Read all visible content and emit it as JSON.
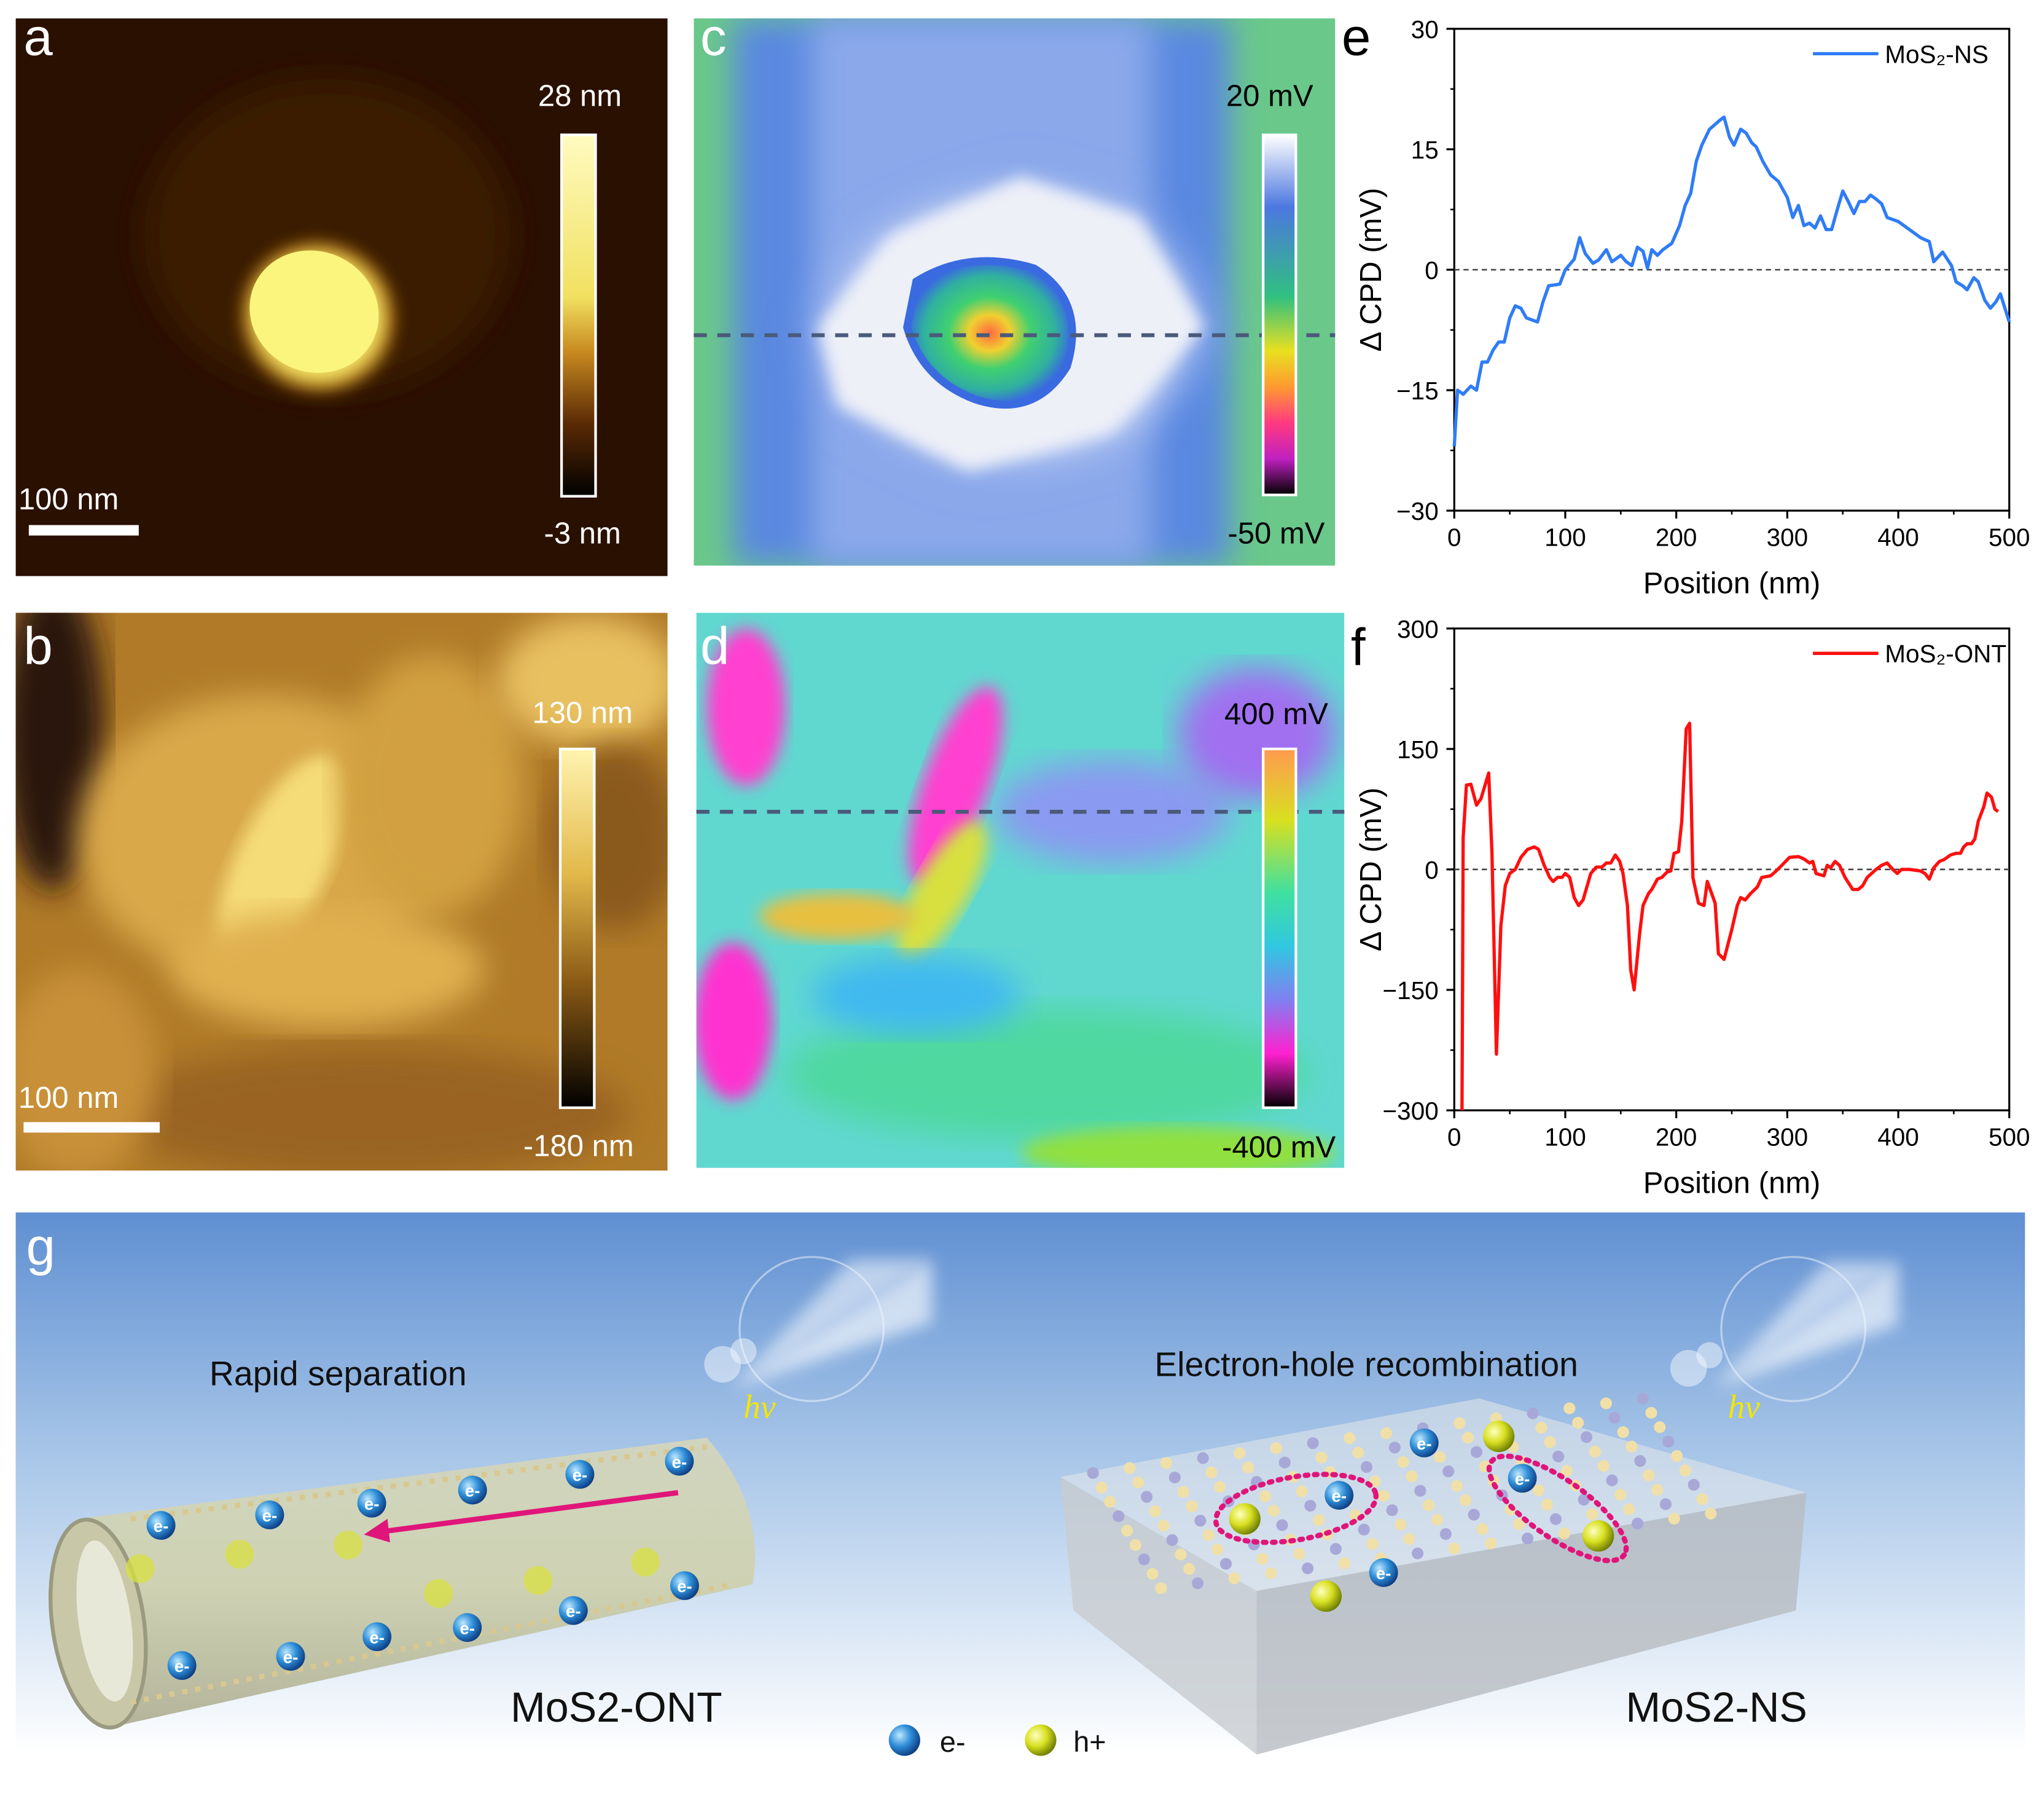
{
  "panels": {
    "a": {
      "letter": "a",
      "scale_bar": "100 nm",
      "cbar_max": "28 nm",
      "cbar_min": "-3 nm"
    },
    "b": {
      "letter": "b",
      "scale_bar": "100 nm",
      "cbar_max": "130 nm",
      "cbar_min": "-180 nm"
    },
    "c": {
      "letter": "c",
      "cbar_max": "20 mV",
      "cbar_min": "-50 mV"
    },
    "d": {
      "letter": "d",
      "cbar_max": "400 mV",
      "cbar_min": "-400 mV"
    },
    "e": {
      "letter": "e"
    },
    "f": {
      "letter": "f"
    },
    "g": {
      "letter": "g",
      "left_caption": "Rapid separation",
      "right_caption": "Electron-hole recombination",
      "hv": "hv",
      "left_label": "MoS2-ONT",
      "right_label": "MoS2-NS",
      "electron_label": "e-",
      "legend_electron": "e-",
      "legend_hole": "h+"
    }
  },
  "colors": {
    "ns_line": "#2f7cf6",
    "ont_line": "#ff0f0f",
    "arrow": "#e0157a",
    "hv": "#f2e600"
  },
  "chart_data": [
    {
      "type": "line",
      "panel": "e",
      "xlabel": "Position (nm)",
      "ylabel": "Δ CPD (mV)",
      "xlim": [
        0,
        500
      ],
      "ylim": [
        -30,
        30
      ],
      "xticks": [
        0,
        100,
        200,
        300,
        400,
        500
      ],
      "yticks": [
        -30,
        -15,
        0,
        15,
        30
      ],
      "reference_line": 0,
      "legend": "top-right",
      "series": [
        {
          "name": "MoS₂-NS",
          "color": "#2f7cf6",
          "x": [
            0,
            3,
            8,
            15,
            20,
            25,
            30,
            35,
            40,
            45,
            50,
            55,
            60,
            65,
            75,
            80,
            85,
            95,
            100,
            108,
            113,
            118,
            125,
            130,
            137,
            142,
            150,
            155,
            160,
            165,
            170,
            174,
            178,
            183,
            188,
            196,
            203,
            208,
            213,
            218,
            223,
            230,
            240,
            243,
            248,
            252,
            258,
            263,
            268,
            272,
            278,
            285,
            292,
            300,
            305,
            310,
            315,
            320,
            325,
            330,
            335,
            340,
            345,
            350,
            355,
            360,
            365,
            370,
            375,
            380,
            385,
            390,
            400,
            410,
            420,
            428,
            432,
            440,
            448,
            452,
            458,
            462,
            468,
            472,
            478,
            483,
            488,
            492,
            500
          ],
          "y": [
            -22,
            -15,
            -15.5,
            -14.5,
            -15,
            -11.5,
            -11.5,
            -10,
            -9,
            -9,
            -6,
            -4.5,
            -4.8,
            -6,
            -6.5,
            -4,
            -2,
            -1.8,
            0,
            1.3,
            4,
            2,
            0.8,
            1.2,
            2.5,
            1,
            1.8,
            1,
            0.5,
            2.8,
            2.3,
            0.2,
            2.5,
            1.8,
            2.5,
            3.3,
            5.5,
            8,
            9.5,
            13.5,
            15.5,
            17.5,
            18.7,
            19,
            16.5,
            15.5,
            17.5,
            17,
            15.8,
            15.3,
            13.5,
            11.8,
            11,
            9,
            6.5,
            8,
            5.5,
            5.8,
            5.2,
            6.7,
            5,
            5,
            7.5,
            9.8,
            8.5,
            7,
            8.5,
            8.5,
            9.3,
            8.8,
            8.2,
            6.5,
            6,
            5,
            4,
            3.5,
            1,
            2.2,
            0.5,
            -1.5,
            -2,
            -2.5,
            -1,
            -1.5,
            -3.8,
            -4.8,
            -4,
            -3,
            -6.5
          ]
        }
      ]
    },
    {
      "type": "line",
      "panel": "f",
      "xlabel": "Position (nm)",
      "ylabel": "Δ CPD (mV)",
      "xlim": [
        0,
        500
      ],
      "ylim": [
        -300,
        300
      ],
      "xticks": [
        0,
        100,
        200,
        300,
        400,
        500
      ],
      "yticks": [
        -300,
        -150,
        0,
        150,
        300
      ],
      "reference_line": 0,
      "legend": "top-right",
      "series": [
        {
          "name": "MoS₂-ONT",
          "color": "#ff0f0f",
          "x": [
            7,
            8,
            11,
            15,
            20,
            24,
            31,
            34,
            38,
            42,
            46,
            50,
            55,
            60,
            66,
            72,
            76,
            81,
            86,
            89,
            93,
            97,
            100,
            104,
            108,
            112,
            116,
            123,
            128,
            133,
            137,
            141,
            145,
            149,
            152,
            156,
            159,
            162,
            167,
            170,
            175,
            178,
            183,
            187,
            192,
            195,
            198,
            202,
            205,
            209,
            212,
            215,
            220,
            225,
            228,
            235,
            238,
            243,
            250,
            255,
            258,
            262,
            267,
            273,
            277,
            285,
            290,
            295,
            302,
            310,
            315,
            320,
            323,
            326,
            333,
            336,
            339,
            343,
            347,
            352,
            359,
            364,
            368,
            372,
            376,
            380,
            385,
            390,
            395,
            399,
            403,
            410,
            420,
            424,
            428,
            432,
            437,
            441,
            447,
            452,
            456,
            459,
            462,
            466,
            469,
            472,
            477,
            480,
            484,
            487,
            490
          ],
          "y": [
            -300,
            40,
            105,
            106,
            80,
            88,
            120,
            20,
            -230,
            -70,
            -20,
            -5,
            0,
            15,
            25,
            28,
            25,
            5,
            -10,
            -15,
            -10,
            -10,
            -5,
            -10,
            -35,
            -45,
            -38,
            -5,
            3,
            3,
            8,
            8,
            18,
            10,
            -5,
            -45,
            -125,
            -150,
            -80,
            -45,
            -30,
            -25,
            -12,
            -10,
            -3,
            -2,
            20,
            22,
            60,
            175,
            182,
            -10,
            -42,
            -45,
            -15,
            -42,
            -105,
            -112,
            -75,
            -45,
            -35,
            -38,
            -30,
            -22,
            -10,
            -8,
            -2,
            5,
            15,
            16,
            13,
            8,
            10,
            -5,
            -8,
            5,
            2,
            10,
            5,
            -10,
            -25,
            -25,
            -20,
            -10,
            -5,
            0,
            5,
            8,
            0,
            -5,
            0,
            0,
            -2,
            -5,
            -12,
            2,
            10,
            12,
            18,
            20,
            20,
            28,
            32,
            32,
            38,
            60,
            78,
            95,
            90,
            75,
            72
          ]
        }
      ]
    }
  ]
}
